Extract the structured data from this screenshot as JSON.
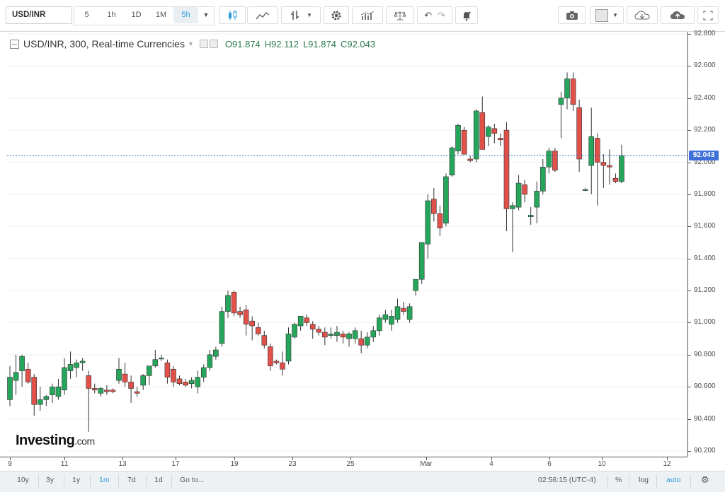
{
  "toolbar": {
    "symbol": "USD/INR",
    "timeframes": [
      "5",
      "1h",
      "1D",
      "1M",
      "5h"
    ],
    "active_timeframe": "5h"
  },
  "legend": {
    "title": "USD/INR, 300, Real-time Currencies",
    "open": "O91.874",
    "high": "H92.112",
    "low": "L91.874",
    "close": "C92.043"
  },
  "brand": {
    "name": "Investing",
    "suffix": ".com"
  },
  "price_axis": {
    "labels": [
      "92.800",
      "92.600",
      "92.400",
      "92.200",
      "92.000",
      "91.800",
      "91.600",
      "91.400",
      "91.200",
      "91.000",
      "90.800",
      "90.600",
      "90.400",
      "90.200"
    ],
    "current_price": "92.043"
  },
  "time_axis": {
    "labels": [
      "9",
      "11",
      "13",
      "17",
      "19",
      "23",
      "25",
      "Mar",
      "4",
      "6",
      "10",
      "12"
    ]
  },
  "bottom_bar": {
    "ranges": [
      "10y",
      "3y",
      "1y",
      "1m",
      "7d",
      "1d"
    ],
    "active_range": "1m",
    "goto": "Go to...",
    "clock": "02:56:15 (UTC-4)",
    "percent": "%",
    "log": "log",
    "auto": "auto"
  },
  "colors": {
    "up": "#26a65b",
    "down": "#e0514a",
    "current_line": "#3f6fd8"
  },
  "chart_data": {
    "type": "candlestick",
    "title": "USD/INR, 300, Real-time Currencies",
    "ylim": [
      90.16,
      92.81
    ],
    "current_value": 92.043,
    "x_tick_labels": [
      "9",
      "11",
      "13",
      "17",
      "19",
      "23",
      "25",
      "Mar",
      "4",
      "6",
      "10",
      "12"
    ],
    "candles": [
      {
        "o": 90.52,
        "h": 90.73,
        "l": 90.48,
        "c": 90.66
      },
      {
        "o": 90.64,
        "h": 90.8,
        "l": 90.55,
        "c": 90.69
      },
      {
        "o": 90.7,
        "h": 90.8,
        "l": 90.6,
        "c": 90.79
      },
      {
        "o": 90.71,
        "h": 90.75,
        "l": 90.62,
        "c": 90.63
      },
      {
        "o": 90.66,
        "h": 90.68,
        "l": 90.42,
        "c": 90.49
      },
      {
        "o": 90.49,
        "h": 90.6,
        "l": 90.45,
        "c": 90.52
      },
      {
        "o": 90.52,
        "h": 90.55,
        "l": 90.48,
        "c": 90.54
      },
      {
        "o": 90.55,
        "h": 90.62,
        "l": 90.5,
        "c": 90.6
      },
      {
        "o": 90.54,
        "h": 90.65,
        "l": 90.52,
        "c": 90.6
      },
      {
        "o": 90.58,
        "h": 90.78,
        "l": 90.55,
        "c": 90.72
      },
      {
        "o": 90.7,
        "h": 90.82,
        "l": 90.65,
        "c": 90.74
      },
      {
        "o": 90.72,
        "h": 90.77,
        "l": 90.66,
        "c": 90.75
      },
      {
        "o": 90.75,
        "h": 90.78,
        "l": 90.7,
        "c": 90.76
      },
      {
        "o": 90.67,
        "h": 90.7,
        "l": 90.32,
        "c": 90.59
      },
      {
        "o": 90.59,
        "h": 90.62,
        "l": 90.56,
        "c": 90.58
      },
      {
        "o": 90.56,
        "h": 90.6,
        "l": 90.54,
        "c": 90.59
      },
      {
        "o": 90.58,
        "h": 90.61,
        "l": 90.55,
        "c": 90.57
      },
      {
        "o": 90.58,
        "h": 90.59,
        "l": 90.56,
        "c": 90.57
      },
      {
        "o": 90.64,
        "h": 90.78,
        "l": 90.62,
        "c": 90.71
      },
      {
        "o": 90.68,
        "h": 90.75,
        "l": 90.6,
        "c": 90.63
      },
      {
        "o": 90.63,
        "h": 90.67,
        "l": 90.5,
        "c": 90.59
      },
      {
        "o": 90.57,
        "h": 90.6,
        "l": 90.54,
        "c": 90.56
      },
      {
        "o": 90.61,
        "h": 90.68,
        "l": 90.58,
        "c": 90.67
      },
      {
        "o": 90.67,
        "h": 90.72,
        "l": 90.61,
        "c": 90.73
      },
      {
        "o": 90.73,
        "h": 90.83,
        "l": 90.72,
        "c": 90.77
      },
      {
        "o": 90.78,
        "h": 90.8,
        "l": 90.76,
        "c": 90.78
      },
      {
        "o": 90.75,
        "h": 90.77,
        "l": 90.62,
        "c": 90.66
      },
      {
        "o": 90.71,
        "h": 90.73,
        "l": 90.6,
        "c": 90.63
      },
      {
        "o": 90.65,
        "h": 90.67,
        "l": 90.61,
        "c": 90.62
      },
      {
        "o": 90.63,
        "h": 90.65,
        "l": 90.6,
        "c": 90.61
      },
      {
        "o": 90.62,
        "h": 90.66,
        "l": 90.59,
        "c": 90.64
      },
      {
        "o": 90.6,
        "h": 90.7,
        "l": 90.56,
        "c": 90.66
      },
      {
        "o": 90.66,
        "h": 90.74,
        "l": 90.63,
        "c": 90.72
      },
      {
        "o": 90.72,
        "h": 90.83,
        "l": 90.7,
        "c": 90.8
      },
      {
        "o": 90.79,
        "h": 90.85,
        "l": 90.77,
        "c": 90.83
      },
      {
        "o": 90.87,
        "h": 91.1,
        "l": 90.85,
        "c": 91.07
      },
      {
        "o": 91.07,
        "h": 91.2,
        "l": 91.03,
        "c": 91.17
      },
      {
        "o": 91.19,
        "h": 91.2,
        "l": 91.04,
        "c": 91.06
      },
      {
        "o": 91.07,
        "h": 91.1,
        "l": 91.03,
        "c": 91.05
      },
      {
        "o": 91.08,
        "h": 91.11,
        "l": 90.92,
        "c": 90.99
      },
      {
        "o": 91.01,
        "h": 91.04,
        "l": 90.89,
        "c": 90.98
      },
      {
        "o": 90.97,
        "h": 91.0,
        "l": 90.92,
        "c": 90.93
      },
      {
        "o": 90.92,
        "h": 90.95,
        "l": 90.84,
        "c": 90.86
      },
      {
        "o": 90.85,
        "h": 90.87,
        "l": 90.7,
        "c": 90.73
      },
      {
        "o": 90.76,
        "h": 90.77,
        "l": 90.74,
        "c": 90.75
      },
      {
        "o": 90.75,
        "h": 90.82,
        "l": 90.67,
        "c": 90.71
      },
      {
        "o": 90.76,
        "h": 90.97,
        "l": 90.74,
        "c": 90.93
      },
      {
        "o": 90.91,
        "h": 91.0,
        "l": 90.9,
        "c": 90.99
      },
      {
        "o": 90.98,
        "h": 91.03,
        "l": 90.95,
        "c": 91.04
      },
      {
        "o": 91.03,
        "h": 91.05,
        "l": 90.98,
        "c": 91.0
      },
      {
        "o": 90.99,
        "h": 91.01,
        "l": 90.9,
        "c": 90.96
      },
      {
        "o": 90.96,
        "h": 90.98,
        "l": 90.92,
        "c": 90.94
      },
      {
        "o": 90.94,
        "h": 90.97,
        "l": 90.86,
        "c": 90.91
      },
      {
        "o": 90.92,
        "h": 90.97,
        "l": 90.9,
        "c": 90.93
      },
      {
        "o": 90.92,
        "h": 90.98,
        "l": 90.88,
        "c": 90.94
      },
      {
        "o": 90.93,
        "h": 90.95,
        "l": 90.87,
        "c": 90.91
      },
      {
        "o": 90.9,
        "h": 90.94,
        "l": 90.85,
        "c": 90.93
      },
      {
        "o": 90.9,
        "h": 90.97,
        "l": 90.87,
        "c": 90.95
      },
      {
        "o": 90.9,
        "h": 90.95,
        "l": 90.81,
        "c": 90.86
      },
      {
        "o": 90.86,
        "h": 90.94,
        "l": 90.84,
        "c": 90.91
      },
      {
        "o": 90.91,
        "h": 90.98,
        "l": 90.88,
        "c": 90.95
      },
      {
        "o": 90.95,
        "h": 91.05,
        "l": 90.92,
        "c": 91.03
      },
      {
        "o": 91.02,
        "h": 91.08,
        "l": 91.0,
        "c": 91.05
      },
      {
        "o": 90.99,
        "h": 91.08,
        "l": 90.95,
        "c": 91.04
      },
      {
        "o": 91.02,
        "h": 91.15,
        "l": 91.0,
        "c": 91.1
      },
      {
        "o": 91.09,
        "h": 91.13,
        "l": 91.05,
        "c": 91.07
      },
      {
        "o": 91.02,
        "h": 91.12,
        "l": 91.0,
        "c": 91.1
      },
      {
        "o": 91.2,
        "h": 91.27,
        "l": 91.17,
        "c": 91.27
      },
      {
        "o": 91.27,
        "h": 91.5,
        "l": 91.24,
        "c": 91.5
      },
      {
        "o": 91.49,
        "h": 91.8,
        "l": 91.4,
        "c": 91.76
      },
      {
        "o": 91.77,
        "h": 91.84,
        "l": 91.63,
        "c": 91.68
      },
      {
        "o": 91.68,
        "h": 91.73,
        "l": 91.54,
        "c": 91.59
      },
      {
        "o": 91.62,
        "h": 91.93,
        "l": 91.6,
        "c": 91.91
      },
      {
        "o": 91.92,
        "h": 92.1,
        "l": 91.91,
        "c": 92.09
      },
      {
        "o": 92.07,
        "h": 92.24,
        "l": 92.05,
        "c": 92.23
      },
      {
        "o": 92.2,
        "h": 92.22,
        "l": 92.06,
        "c": 92.05
      },
      {
        "o": 92.02,
        "h": 92.04,
        "l": 92.0,
        "c": 92.01
      },
      {
        "o": 92.02,
        "h": 92.33,
        "l": 92.0,
        "c": 92.32
      },
      {
        "o": 92.31,
        "h": 92.41,
        "l": 92.08,
        "c": 92.08
      },
      {
        "o": 92.16,
        "h": 92.23,
        "l": 92.1,
        "c": 92.22
      },
      {
        "o": 92.21,
        "h": 92.24,
        "l": 92.12,
        "c": 92.18
      },
      {
        "o": 92.15,
        "h": 92.18,
        "l": 92.1,
        "c": 92.14
      },
      {
        "o": 92.2,
        "h": 92.25,
        "l": 91.57,
        "c": 91.71
      },
      {
        "o": 91.71,
        "h": 91.75,
        "l": 91.44,
        "c": 91.73
      },
      {
        "o": 91.72,
        "h": 91.92,
        "l": 91.7,
        "c": 91.87
      },
      {
        "o": 91.86,
        "h": 91.89,
        "l": 91.75,
        "c": 91.8
      },
      {
        "o": 91.66,
        "h": 91.72,
        "l": 91.61,
        "c": 91.67
      },
      {
        "o": 91.72,
        "h": 91.88,
        "l": 91.62,
        "c": 91.82
      },
      {
        "o": 91.82,
        "h": 92.02,
        "l": 91.8,
        "c": 91.97
      },
      {
        "o": 91.97,
        "h": 92.09,
        "l": 91.93,
        "c": 92.07
      },
      {
        "o": 92.07,
        "h": 92.09,
        "l": 91.94,
        "c": 91.95
      },
      {
        "o": 92.36,
        "h": 92.44,
        "l": 92.15,
        "c": 92.4
      },
      {
        "o": 92.4,
        "h": 92.56,
        "l": 92.33,
        "c": 92.52
      },
      {
        "o": 92.52,
        "h": 92.56,
        "l": 92.32,
        "c": 92.36
      },
      {
        "o": 92.34,
        "h": 92.39,
        "l": 91.94,
        "c": 92.02
      },
      {
        "o": 91.83,
        "h": 91.84,
        "l": 91.82,
        "c": 91.83
      },
      {
        "o": 91.98,
        "h": 92.34,
        "l": 91.8,
        "c": 92.16
      },
      {
        "o": 92.15,
        "h": 92.18,
        "l": 91.73,
        "c": 92.0
      },
      {
        "o": 92.0,
        "h": 92.05,
        "l": 91.84,
        "c": 91.98
      },
      {
        "o": 91.98,
        "h": 92.08,
        "l": 91.86,
        "c": 91.97
      },
      {
        "o": 91.9,
        "h": 91.93,
        "l": 91.87,
        "c": 91.88
      },
      {
        "o": 91.88,
        "h": 92.11,
        "l": 91.87,
        "c": 92.04
      }
    ]
  }
}
